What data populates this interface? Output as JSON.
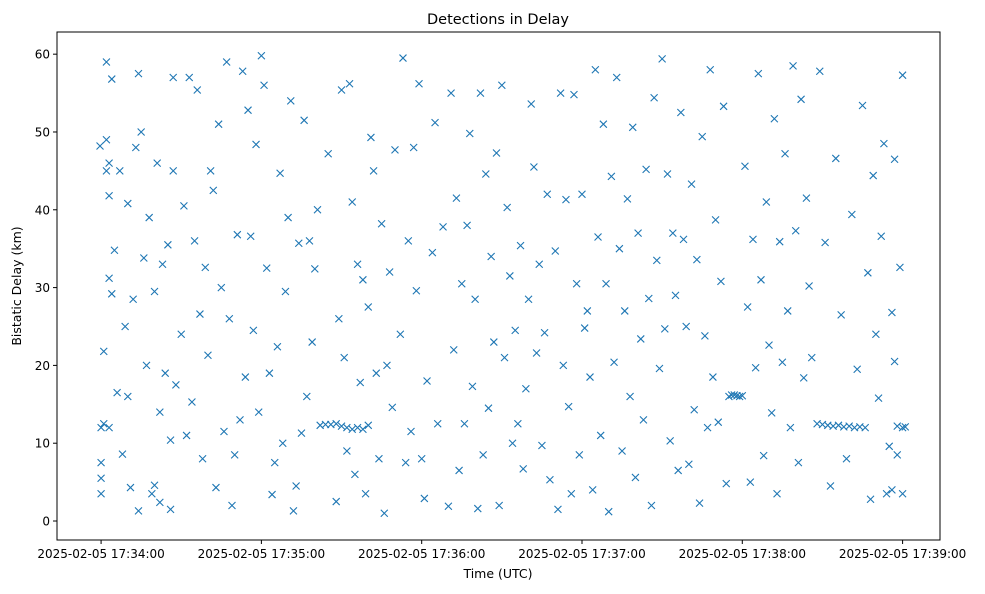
{
  "chart_data": {
    "type": "scatter",
    "title": "Detections in Delay",
    "xlabel": "Time (UTC)",
    "ylabel": "Bistatic Delay (km)",
    "x_units": "seconds after 2025-02-05 17:34:00 UTC",
    "xlim": [
      -16.5,
      314
    ],
    "ylim": [
      -2.44,
      62.85
    ],
    "grid": false,
    "marker": "x",
    "color": "#1f77b4",
    "xticks": [
      {
        "value": 0,
        "label": "2025-02-05 17:34:00"
      },
      {
        "value": 60,
        "label": "2025-02-05 17:35:00"
      },
      {
        "value": 120,
        "label": "2025-02-05 17:36:00"
      },
      {
        "value": 180,
        "label": "2025-02-05 17:37:00"
      },
      {
        "value": 240,
        "label": "2025-02-05 17:38:00"
      },
      {
        "value": 300,
        "label": "2025-02-05 17:39:00"
      }
    ],
    "yticks": [
      {
        "value": 0,
        "label": "0"
      },
      {
        "value": 10,
        "label": "10"
      },
      {
        "value": 20,
        "label": "20"
      },
      {
        "value": 30,
        "label": "30"
      },
      {
        "value": 40,
        "label": "40"
      },
      {
        "value": 50,
        "label": "50"
      },
      {
        "value": 60,
        "label": "60"
      }
    ],
    "points": [
      [
        -0.4,
        48.2
      ],
      [
        0,
        12
      ],
      [
        1,
        12.5
      ],
      [
        0,
        7.5
      ],
      [
        0,
        5.5
      ],
      [
        0,
        3.5
      ],
      [
        1,
        21.8
      ],
      [
        2,
        49
      ],
      [
        2,
        45
      ],
      [
        2,
        59
      ],
      [
        3,
        41.8
      ],
      [
        3,
        46
      ],
      [
        3,
        12
      ],
      [
        3,
        31.2
      ],
      [
        4,
        29.2
      ],
      [
        4,
        56.8
      ],
      [
        5,
        34.8
      ],
      [
        6,
        16.5
      ],
      [
        7,
        45
      ],
      [
        8,
        8.6
      ],
      [
        9,
        25
      ],
      [
        10,
        16
      ],
      [
        10,
        40.8
      ],
      [
        11,
        4.3
      ],
      [
        12,
        28.5
      ],
      [
        13,
        48
      ],
      [
        14,
        57.5
      ],
      [
        14,
        1.3
      ],
      [
        15,
        50
      ],
      [
        16,
        33.8
      ],
      [
        17,
        20
      ],
      [
        18,
        39
      ],
      [
        19,
        3.5
      ],
      [
        20,
        4.6
      ],
      [
        20,
        29.5
      ],
      [
        21,
        46
      ],
      [
        22,
        2.4
      ],
      [
        22,
        14
      ],
      [
        23,
        33
      ],
      [
        24,
        19
      ],
      [
        25,
        35.5
      ],
      [
        26,
        1.5
      ],
      [
        26,
        10.4
      ],
      [
        27,
        45
      ],
      [
        27,
        57
      ],
      [
        28,
        17.5
      ],
      [
        30,
        24
      ],
      [
        31,
        40.5
      ],
      [
        32,
        11
      ],
      [
        33,
        57
      ],
      [
        34,
        15.3
      ],
      [
        35,
        36
      ],
      [
        36,
        55.4
      ],
      [
        37,
        26.6
      ],
      [
        38,
        8
      ],
      [
        39,
        32.6
      ],
      [
        40,
        21.3
      ],
      [
        41,
        45
      ],
      [
        42,
        42.5
      ],
      [
        43,
        4.3
      ],
      [
        44,
        51
      ],
      [
        45,
        30
      ],
      [
        46,
        11.5
      ],
      [
        47,
        59
      ],
      [
        48,
        26
      ],
      [
        49,
        2
      ],
      [
        50,
        8.5
      ],
      [
        51,
        36.8
      ],
      [
        52,
        13
      ],
      [
        53,
        57.8
      ],
      [
        54,
        18.5
      ],
      [
        55,
        52.8
      ],
      [
        56,
        36.6
      ],
      [
        57,
        24.5
      ],
      [
        58,
        48.4
      ],
      [
        59,
        14
      ],
      [
        60,
        59.8
      ],
      [
        61,
        56
      ],
      [
        62,
        32.5
      ],
      [
        63,
        19
      ],
      [
        64,
        3.4
      ],
      [
        65,
        7.5
      ],
      [
        66,
        22.4
      ],
      [
        67,
        44.7
      ],
      [
        68,
        10
      ],
      [
        69,
        29.5
      ],
      [
        70,
        39
      ],
      [
        71,
        54
      ],
      [
        72,
        1.3
      ],
      [
        73,
        4.5
      ],
      [
        74,
        35.7
      ],
      [
        75,
        11.3
      ],
      [
        76,
        51.5
      ],
      [
        77,
        16
      ],
      [
        78,
        36
      ],
      [
        79,
        23
      ],
      [
        80,
        32.4
      ],
      [
        81,
        40
      ],
      [
        82,
        12.3
      ],
      [
        84,
        12.4
      ],
      [
        86,
        12.4
      ],
      [
        88,
        12.5
      ],
      [
        90,
        12.2
      ],
      [
        92,
        12
      ],
      [
        94,
        11.8
      ],
      [
        96,
        12
      ],
      [
        98,
        11.8
      ],
      [
        100,
        12.3
      ],
      [
        85,
        47.2
      ],
      [
        88,
        2.5
      ],
      [
        89,
        26
      ],
      [
        90,
        55.4
      ],
      [
        91,
        21
      ],
      [
        92,
        9
      ],
      [
        93,
        56.2
      ],
      [
        94,
        41
      ],
      [
        95,
        6
      ],
      [
        96,
        33
      ],
      [
        97,
        17.8
      ],
      [
        98,
        31
      ],
      [
        99,
        3.5
      ],
      [
        100,
        27.5
      ],
      [
        101,
        49.3
      ],
      [
        102,
        45
      ],
      [
        103,
        19
      ],
      [
        104,
        8
      ],
      [
        105,
        38.2
      ],
      [
        106,
        1
      ],
      [
        107,
        20
      ],
      [
        108,
        32
      ],
      [
        109,
        14.6
      ],
      [
        110,
        47.7
      ],
      [
        112,
        24
      ],
      [
        113,
        59.5
      ],
      [
        114,
        7.5
      ],
      [
        115,
        36
      ],
      [
        116,
        11.5
      ],
      [
        117,
        48
      ],
      [
        118,
        29.6
      ],
      [
        119,
        56.2
      ],
      [
        120,
        8
      ],
      [
        121,
        2.9
      ],
      [
        122,
        18
      ],
      [
        124,
        34.5
      ],
      [
        125,
        51.2
      ],
      [
        126,
        12.5
      ],
      [
        128,
        37.8
      ],
      [
        130,
        1.9
      ],
      [
        131,
        55
      ],
      [
        132,
        22
      ],
      [
        133,
        41.5
      ],
      [
        134,
        6.5
      ],
      [
        135,
        30.5
      ],
      [
        136,
        12.5
      ],
      [
        137,
        38
      ],
      [
        138,
        49.8
      ],
      [
        139,
        17.3
      ],
      [
        140,
        28.5
      ],
      [
        141,
        1.6
      ],
      [
        142,
        55
      ],
      [
        143,
        8.5
      ],
      [
        144,
        44.6
      ],
      [
        145,
        14.5
      ],
      [
        146,
        34
      ],
      [
        147,
        23
      ],
      [
        148,
        47.3
      ],
      [
        149,
        2
      ],
      [
        150,
        56
      ],
      [
        151,
        21
      ],
      [
        152,
        40.3
      ],
      [
        153,
        31.5
      ],
      [
        154,
        10
      ],
      [
        155,
        24.5
      ],
      [
        156,
        12.5
      ],
      [
        157,
        35.4
      ],
      [
        158,
        6.7
      ],
      [
        159,
        17
      ],
      [
        160,
        28.5
      ],
      [
        161,
        53.6
      ],
      [
        162,
        45.5
      ],
      [
        163,
        21.6
      ],
      [
        164,
        33
      ],
      [
        165,
        9.7
      ],
      [
        166,
        24.2
      ],
      [
        167,
        42
      ],
      [
        168,
        5.3
      ],
      [
        170,
        34.7
      ],
      [
        171,
        1.5
      ],
      [
        172,
        55
      ],
      [
        173,
        20
      ],
      [
        174,
        41.3
      ],
      [
        175,
        14.7
      ],
      [
        176,
        3.5
      ],
      [
        177,
        54.8
      ],
      [
        178,
        30.5
      ],
      [
        179,
        8.5
      ],
      [
        180,
        42
      ],
      [
        181,
        24.8
      ],
      [
        182,
        27
      ],
      [
        183,
        18.5
      ],
      [
        184,
        4
      ],
      [
        185,
        58
      ],
      [
        186,
        36.5
      ],
      [
        187,
        11
      ],
      [
        188,
        51
      ],
      [
        189,
        30.5
      ],
      [
        190,
        1.2
      ],
      [
        191,
        44.3
      ],
      [
        192,
        20.4
      ],
      [
        193,
        57
      ],
      [
        194,
        35
      ],
      [
        195,
        9
      ],
      [
        196,
        27
      ],
      [
        197,
        41.4
      ],
      [
        198,
        16
      ],
      [
        199,
        50.6
      ],
      [
        200,
        5.6
      ],
      [
        201,
        37
      ],
      [
        202,
        23.4
      ],
      [
        203,
        13
      ],
      [
        204,
        45.2
      ],
      [
        205,
        28.6
      ],
      [
        206,
        2
      ],
      [
        207,
        54.4
      ],
      [
        208,
        33.5
      ],
      [
        209,
        19.6
      ],
      [
        210,
        59.4
      ],
      [
        211,
        24.7
      ],
      [
        212,
        44.6
      ],
      [
        213,
        10.3
      ],
      [
        214,
        37
      ],
      [
        215,
        29
      ],
      [
        216,
        6.5
      ],
      [
        217,
        52.5
      ],
      [
        218,
        36.2
      ],
      [
        219,
        25
      ],
      [
        220,
        7.3
      ],
      [
        221,
        43.3
      ],
      [
        222,
        14.3
      ],
      [
        223,
        33.6
      ],
      [
        224,
        2.3
      ],
      [
        225,
        49.4
      ],
      [
        226,
        23.8
      ],
      [
        227,
        12
      ],
      [
        228,
        58
      ],
      [
        229,
        18.5
      ],
      [
        230,
        38.7
      ],
      [
        231,
        12.7
      ],
      [
        232,
        30.8
      ],
      [
        233,
        53.3
      ],
      [
        234,
        4.8
      ],
      [
        235,
        16
      ],
      [
        236,
        16.2
      ],
      [
        237,
        16.2
      ],
      [
        238,
        16.1
      ],
      [
        239,
        16
      ],
      [
        240,
        16.1
      ],
      [
        241,
        45.6
      ],
      [
        242,
        27.5
      ],
      [
        243,
        5
      ],
      [
        244,
        36.2
      ],
      [
        245,
        19.7
      ],
      [
        246,
        57.5
      ],
      [
        247,
        31
      ],
      [
        248,
        8.4
      ],
      [
        249,
        41
      ],
      [
        250,
        22.6
      ],
      [
        251,
        13.9
      ],
      [
        252,
        51.7
      ],
      [
        253,
        3.5
      ],
      [
        254,
        35.9
      ],
      [
        255,
        20.4
      ],
      [
        256,
        47.2
      ],
      [
        257,
        27
      ],
      [
        258,
        12
      ],
      [
        259,
        58.5
      ],
      [
        260,
        37.3
      ],
      [
        261,
        7.5
      ],
      [
        262,
        54.2
      ],
      [
        263,
        18.4
      ],
      [
        264,
        41.5
      ],
      [
        265,
        30.2
      ],
      [
        266,
        21
      ],
      [
        268,
        12.5
      ],
      [
        270,
        12.4
      ],
      [
        272,
        12.3
      ],
      [
        274,
        12.2
      ],
      [
        276,
        12.3
      ],
      [
        278,
        12.1
      ],
      [
        280,
        12.2
      ],
      [
        282,
        12
      ],
      [
        284,
        12.1
      ],
      [
        286,
        12
      ],
      [
        269,
        57.8
      ],
      [
        271,
        35.8
      ],
      [
        273,
        4.5
      ],
      [
        275,
        46.6
      ],
      [
        277,
        26.5
      ],
      [
        279,
        8
      ],
      [
        281,
        39.4
      ],
      [
        283,
        19.5
      ],
      [
        285,
        53.4
      ],
      [
        287,
        31.9
      ],
      [
        288,
        2.8
      ],
      [
        289,
        44.4
      ],
      [
        290,
        24
      ],
      [
        291,
        15.8
      ],
      [
        292,
        36.6
      ],
      [
        293,
        48.5
      ],
      [
        294,
        3.5
      ],
      [
        295,
        9.6
      ],
      [
        296,
        26.8
      ],
      [
        297,
        46.5
      ],
      [
        298,
        12.2
      ],
      [
        300,
        12
      ],
      [
        301,
        12.1
      ],
      [
        299,
        32.6
      ],
      [
        300,
        57.3
      ],
      [
        300,
        3.5
      ],
      [
        298,
        8.5
      ],
      [
        296,
        4
      ],
      [
        297,
        20.5
      ]
    ]
  }
}
